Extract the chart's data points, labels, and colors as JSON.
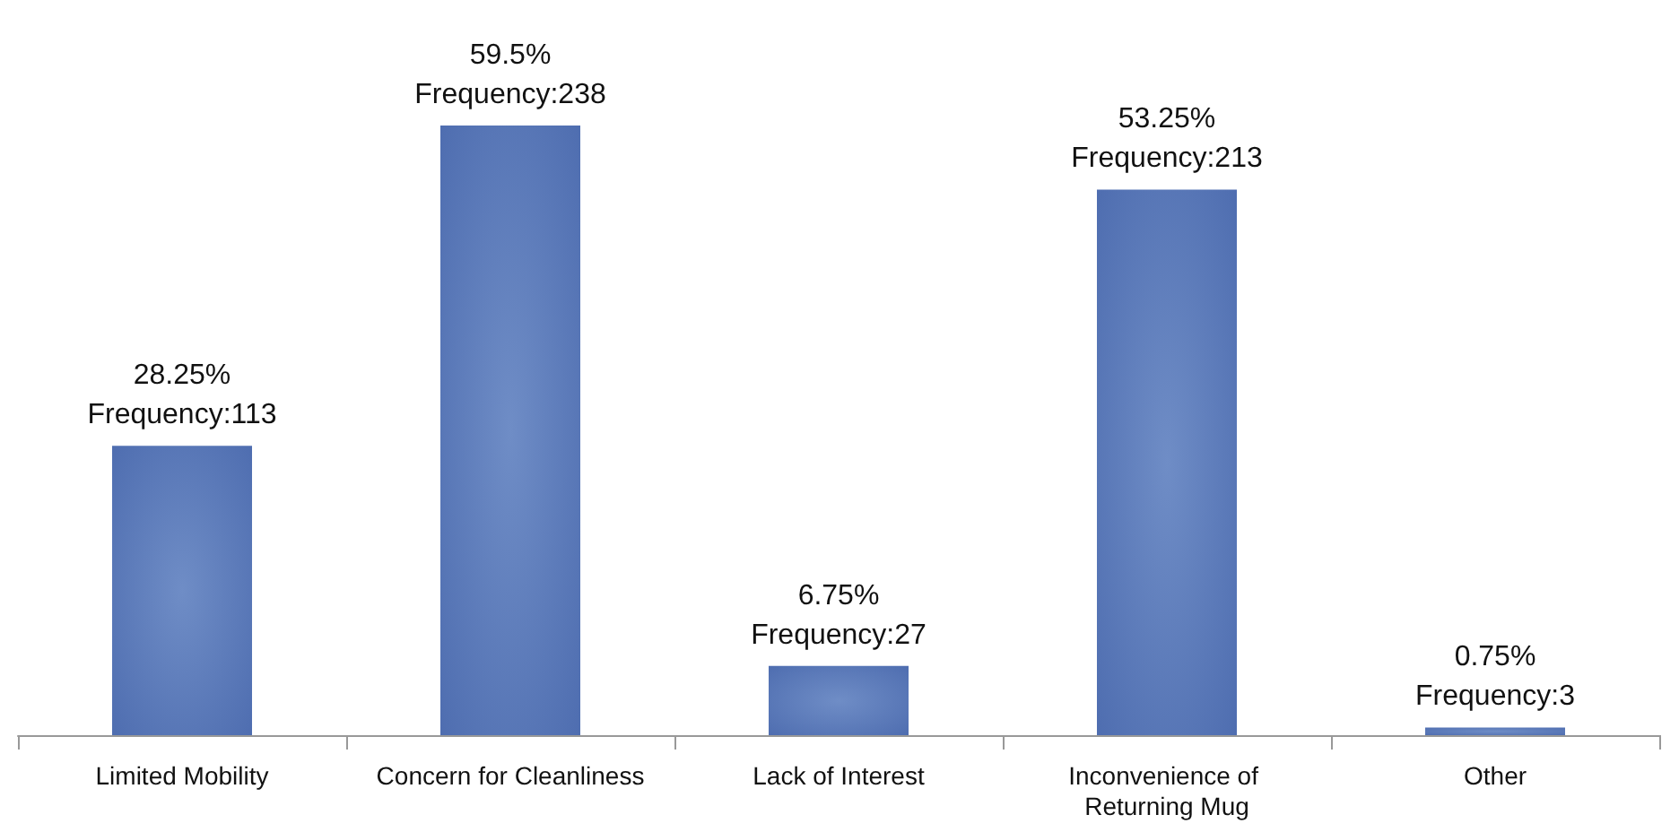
{
  "chart_data": {
    "type": "bar",
    "categories": [
      "Limited Mobility",
      "Concern for Cleanliness",
      "Lack of Interest",
      "Inconvenience of Returning Mug",
      "Other"
    ],
    "values": [
      28.25,
      59.5,
      6.75,
      53.25,
      0.75
    ],
    "value_labels": [
      "28.25%\nFrequency:113",
      "59.5%\nFrequency:238",
      "6.75%\nFrequency:27",
      "53.25%\nFrequency:213",
      "0.75%\nFrequency:3"
    ],
    "color": "#4a69ad"
  }
}
